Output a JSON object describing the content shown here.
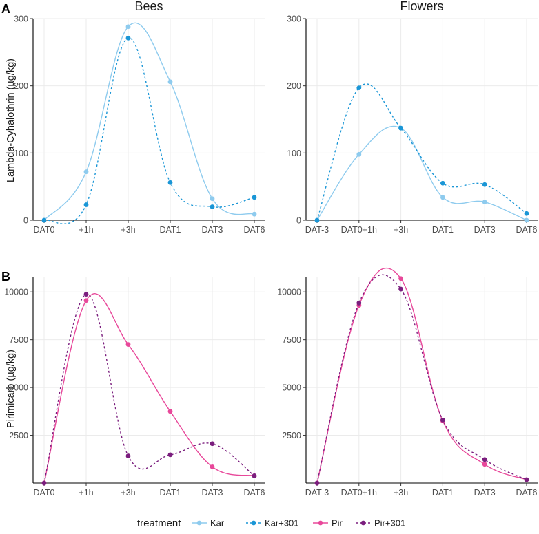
{
  "colors": {
    "Kar": "#8ecbee",
    "Kar+301": "#1a96d6",
    "Pir": "#e8489a",
    "Pir+301": "#7b1e7e"
  },
  "rows": [
    {
      "tag": "A",
      "ylabel": "Lambda-Cyhalothrin (µg/kg)"
    },
    {
      "tag": "B",
      "ylabel": "Pirimicarb (µg/kg)"
    }
  ],
  "columns": [
    {
      "title": "Bees"
    },
    {
      "title": "Flowers"
    }
  ],
  "legend": {
    "title": "treatment",
    "items": [
      "Kar",
      "Kar+301",
      "Pir",
      "Pir+301"
    ]
  },
  "chart_data": [
    {
      "type": "line",
      "panel": "A-Bees",
      "title": "Bees",
      "ylabel": "Lambda-Cyhalothrin (µg/kg)",
      "categories": [
        "DAT0",
        "+1h",
        "+3h",
        "DAT1",
        "DAT3",
        "DAT6"
      ],
      "ylim": [
        0,
        300
      ],
      "yticks": [
        0,
        100,
        200,
        300
      ],
      "series": [
        {
          "name": "Kar",
          "dashed": false,
          "values": [
            0,
            72,
            288,
            206,
            32,
            9
          ]
        },
        {
          "name": "Kar+301",
          "dashed": true,
          "values": [
            0,
            23,
            271,
            56,
            20,
            34
          ]
        }
      ]
    },
    {
      "type": "line",
      "panel": "A-Flowers",
      "title": "Flowers",
      "ylabel": "",
      "categories": [
        "DAT-3",
        "DAT0+1h",
        "+3h",
        "DAT1",
        "DAT3",
        "DAT6"
      ],
      "ylim": [
        0,
        300
      ],
      "yticks": [
        0,
        100,
        200,
        300
      ],
      "series": [
        {
          "name": "Kar",
          "dashed": false,
          "values": [
            0,
            98,
            137,
            34,
            27,
            0
          ]
        },
        {
          "name": "Kar+301",
          "dashed": true,
          "values": [
            0,
            197,
            137,
            55,
            53,
            10
          ]
        }
      ]
    },
    {
      "type": "line",
      "panel": "B-Bees",
      "title": "",
      "ylabel": "Pirimicarb (µg/kg)",
      "categories": [
        "DAT0",
        "+1h",
        "+3h",
        "DAT1",
        "DAT3",
        "DAT6"
      ],
      "ylim": [
        0,
        10800
      ],
      "yticks": [
        2500,
        5000,
        7500,
        10000
      ],
      "series": [
        {
          "name": "Pir",
          "dashed": false,
          "values": [
            0,
            9550,
            7250,
            3750,
            850,
            380
          ]
        },
        {
          "name": "Pir+301",
          "dashed": true,
          "values": [
            0,
            9880,
            1420,
            1480,
            2060,
            380
          ]
        }
      ]
    },
    {
      "type": "line",
      "panel": "B-Flowers",
      "title": "",
      "ylabel": "",
      "categories": [
        "DAT-3",
        "DAT0+1h",
        "+3h",
        "DAT1",
        "DAT3",
        "DAT6"
      ],
      "ylim": [
        0,
        10800
      ],
      "yticks": [
        2500,
        5000,
        7500,
        10000
      ],
      "series": [
        {
          "name": "Pir",
          "dashed": false,
          "values": [
            0,
            9300,
            10700,
            3250,
            980,
            180
          ]
        },
        {
          "name": "Pir+301",
          "dashed": true,
          "values": [
            0,
            9420,
            10150,
            3300,
            1230,
            180
          ]
        }
      ]
    }
  ]
}
